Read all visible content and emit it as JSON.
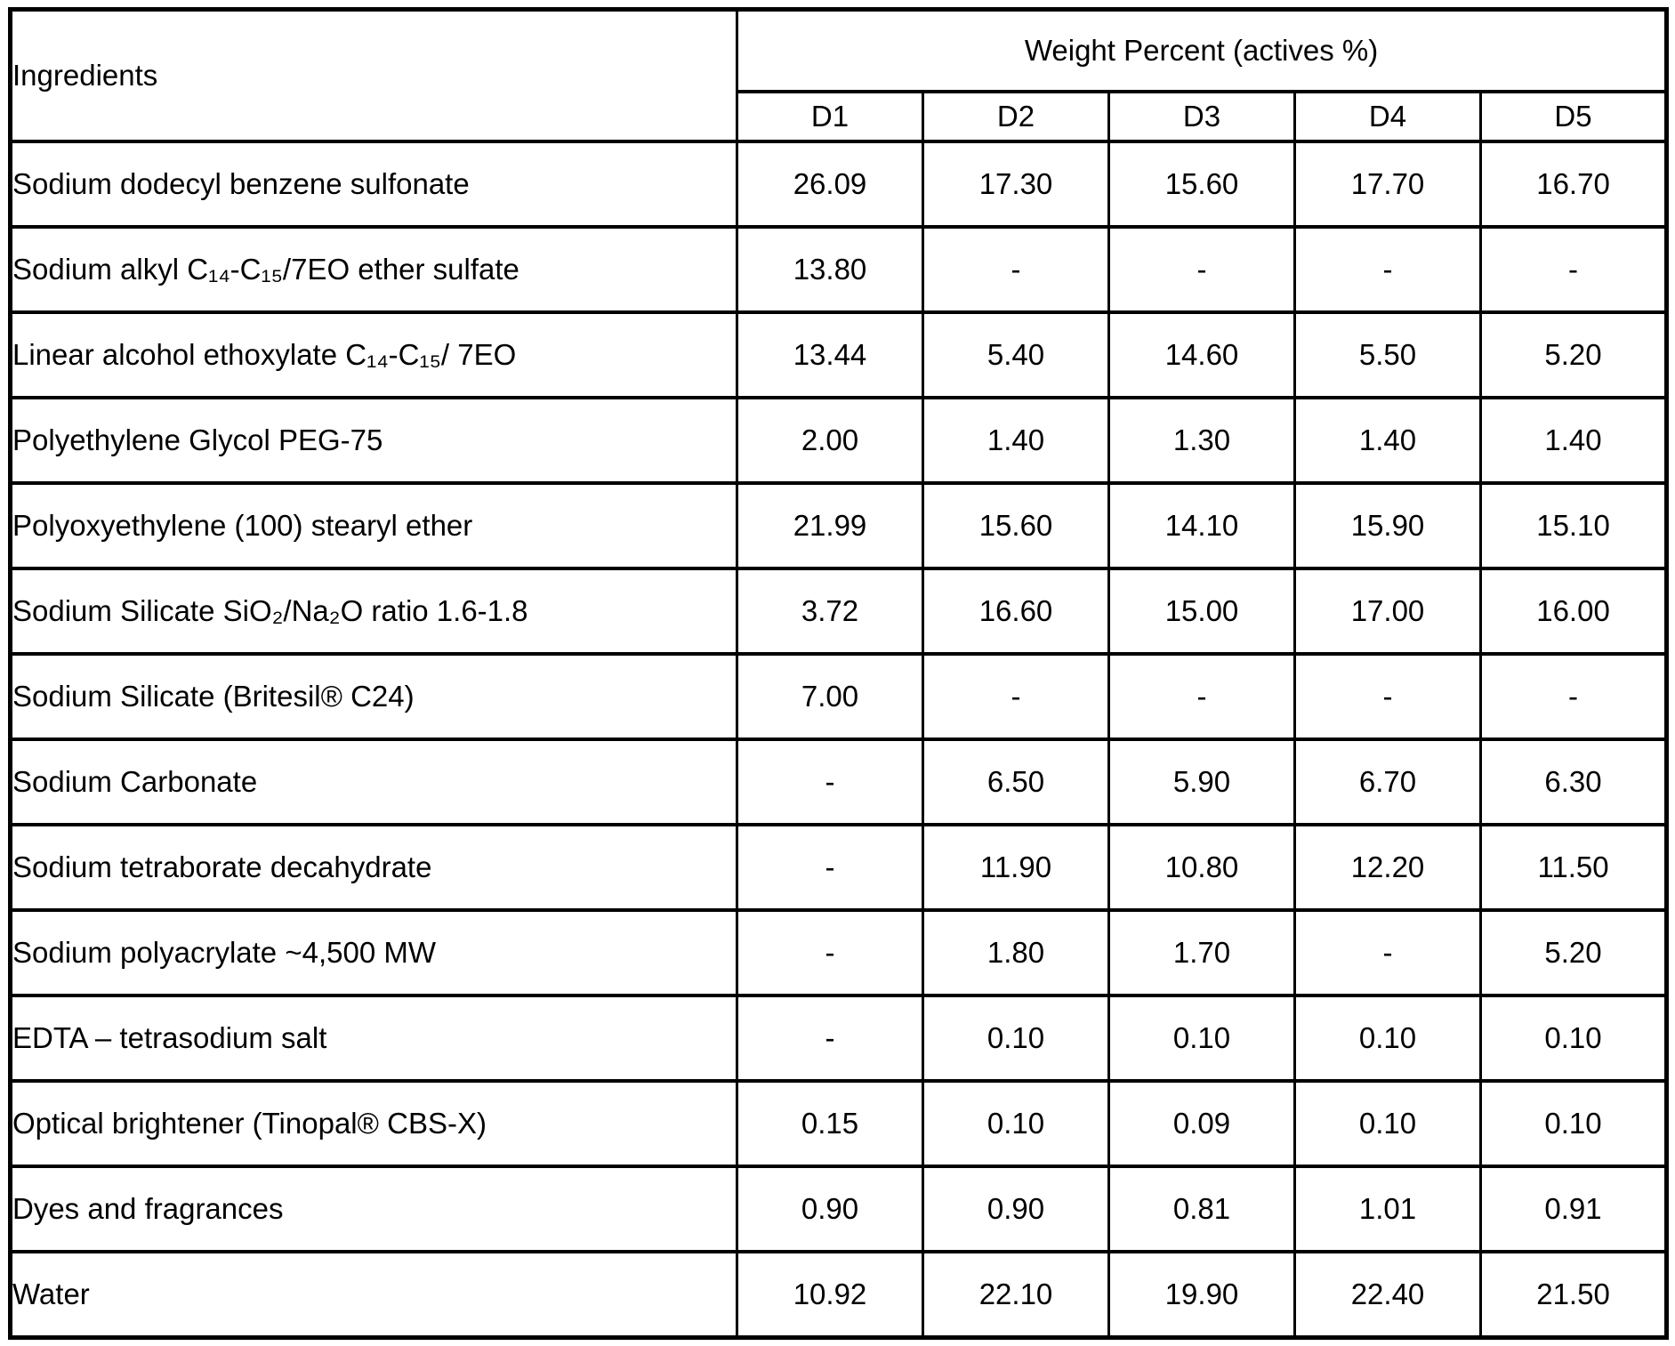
{
  "table": {
    "ingredients_header": "Ingredients",
    "group_header": "Weight Percent (actives %)",
    "columns": [
      "D1",
      "D2",
      "D3",
      "D4",
      "D5"
    ],
    "rows": [
      {
        "ingredient": "Sodium dodecyl benzene sulfonate",
        "values": [
          "26.09",
          "17.30",
          "15.60",
          "17.70",
          "16.70"
        ]
      },
      {
        "ingredient": "Sodium alkyl C₁₄-C₁₅/7EO ether sulfate",
        "values": [
          "13.80",
          "-",
          "-",
          "-",
          "-"
        ]
      },
      {
        "ingredient": "Linear alcohol ethoxylate C₁₄-C₁₅/ 7EO",
        "values": [
          "13.44",
          "5.40",
          "14.60",
          "5.50",
          "5.20"
        ]
      },
      {
        "ingredient": "Polyethylene Glycol PEG-75",
        "values": [
          "2.00",
          "1.40",
          "1.30",
          "1.40",
          "1.40"
        ]
      },
      {
        "ingredient": "Polyoxyethylene (100) stearyl ether",
        "values": [
          "21.99",
          "15.60",
          "14.10",
          "15.90",
          "15.10"
        ]
      },
      {
        "ingredient": "Sodium Silicate SiO₂/Na₂O ratio 1.6-1.8",
        "values": [
          "3.72",
          "16.60",
          "15.00",
          "17.00",
          "16.00"
        ]
      },
      {
        "ingredient": "Sodium Silicate (Britesil® C24)",
        "values": [
          "7.00",
          "-",
          "-",
          "-",
          "-"
        ]
      },
      {
        "ingredient": "Sodium Carbonate",
        "values": [
          "-",
          "6.50",
          "5.90",
          "6.70",
          "6.30"
        ]
      },
      {
        "ingredient": "Sodium tetraborate decahydrate",
        "values": [
          "-",
          "11.90",
          "10.80",
          "12.20",
          "11.50"
        ]
      },
      {
        "ingredient": "Sodium polyacrylate ~4,500 MW",
        "values": [
          "-",
          "1.80",
          "1.70",
          "-",
          "5.20"
        ]
      },
      {
        "ingredient": "EDTA – tetrasodium salt",
        "values": [
          "-",
          "0.10",
          "0.10",
          "0.10",
          "0.10"
        ]
      },
      {
        "ingredient": "Optical brightener (Tinopal® CBS-X)",
        "values": [
          "0.15",
          "0.10",
          "0.09",
          "0.10",
          "0.10"
        ]
      },
      {
        "ingredient": "Dyes and fragrances",
        "values": [
          "0.90",
          "0.90",
          "0.81",
          "1.01",
          "0.91"
        ]
      },
      {
        "ingredient": "Water",
        "values": [
          "10.92",
          "22.10",
          "19.90",
          "22.40",
          "21.50"
        ]
      }
    ]
  }
}
